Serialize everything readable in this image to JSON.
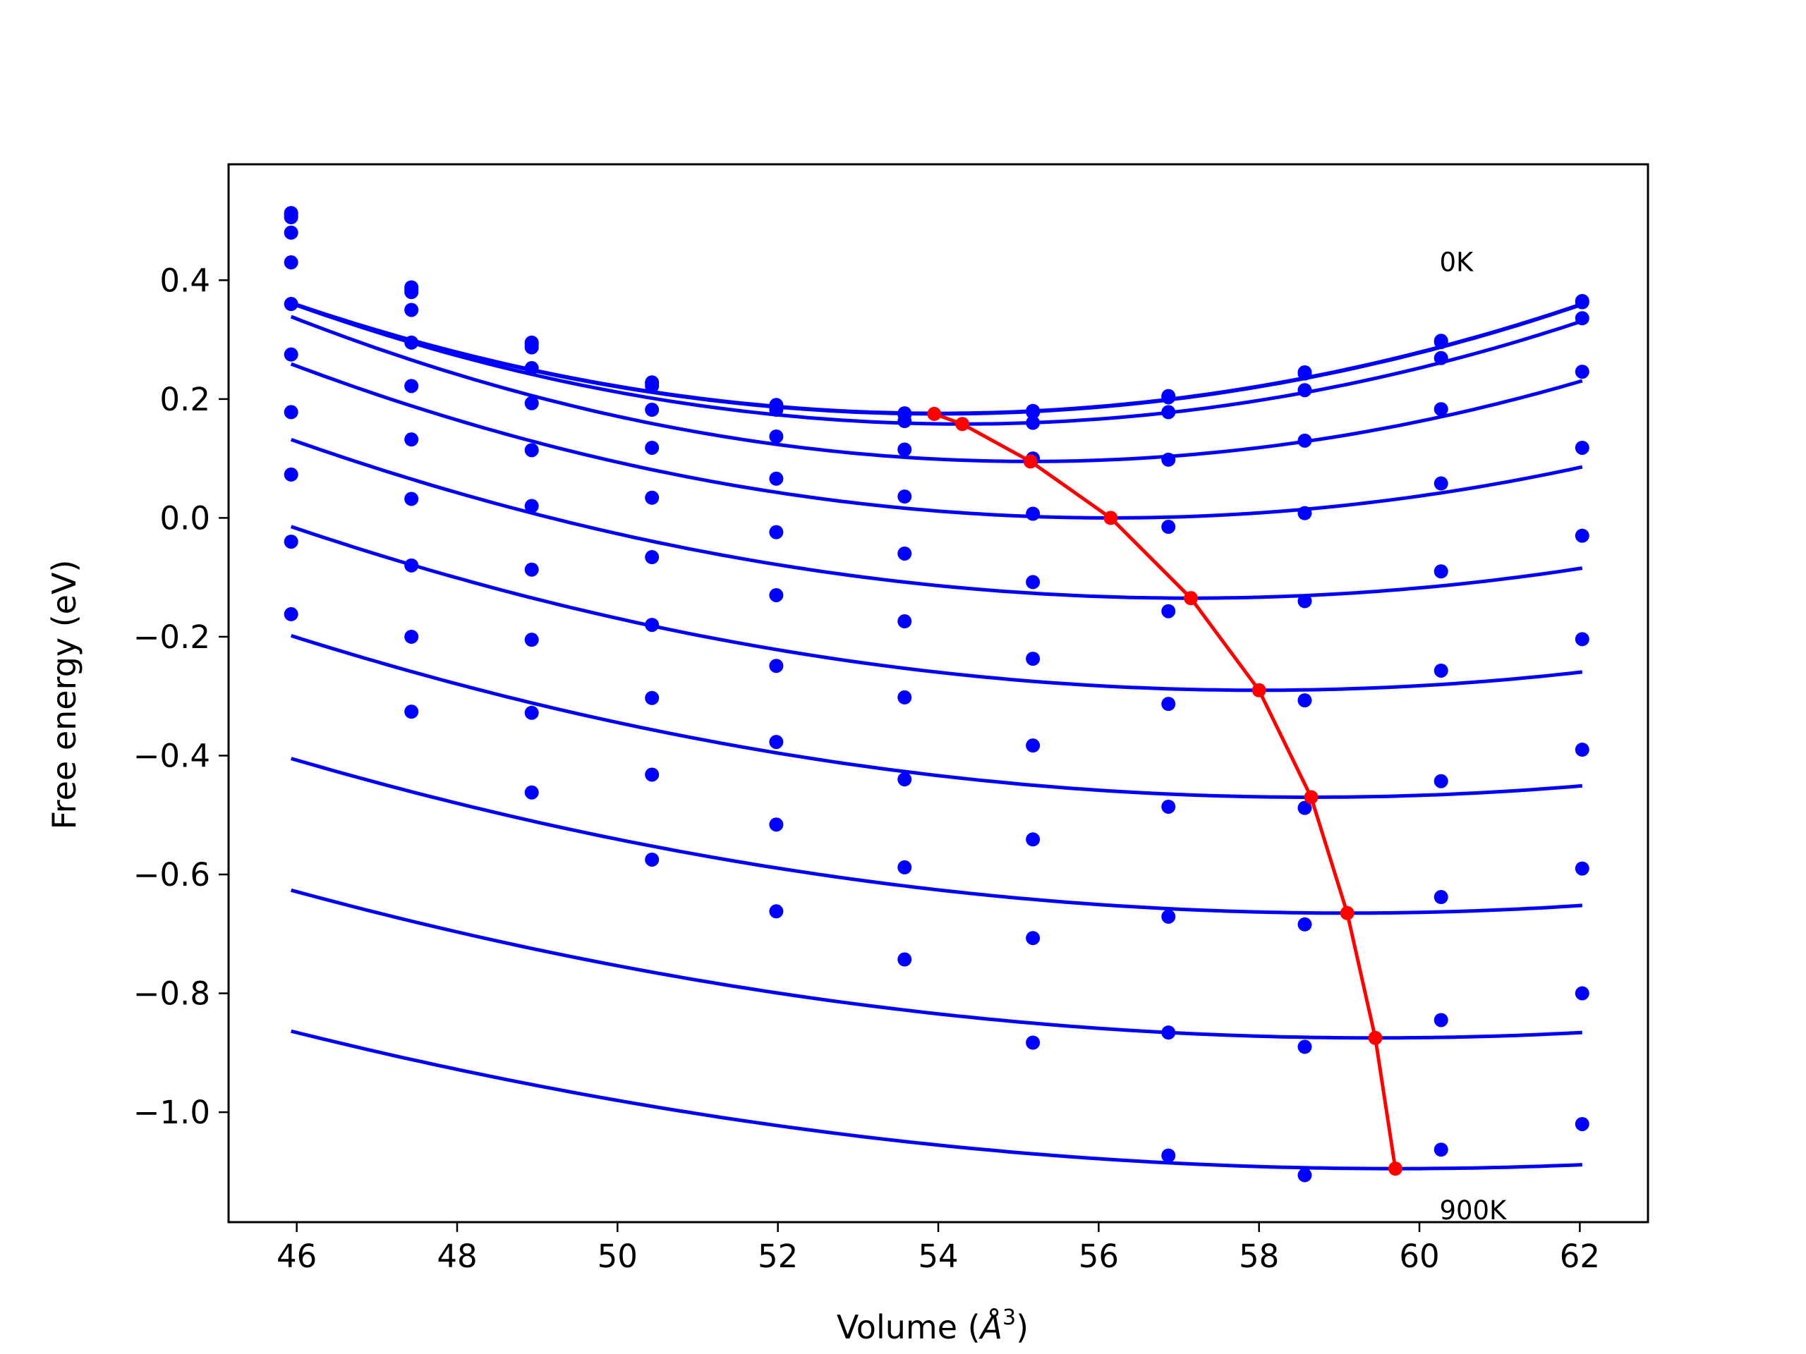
{
  "chart_data": {
    "type": "scatter",
    "xlabel": "Volume (",
    "xlabel_symbol": "Å",
    "xlabel_exponent": "3",
    "xlabel_close": ")",
    "ylabel": "Free energy (eV)",
    "xlim": [
      45.15,
      62.85
    ],
    "ylim": [
      -1.185,
      0.595
    ],
    "xticks": [
      46,
      48,
      50,
      52,
      54,
      56,
      58,
      60,
      62
    ],
    "xtick_labels": [
      "46",
      "48",
      "50",
      "52",
      "54",
      "56",
      "58",
      "60",
      "62"
    ],
    "yticks": [
      0.4,
      0.2,
      0.0,
      -0.2,
      -0.4,
      -0.6,
      -0.8,
      -1.0
    ],
    "ytick_labels": [
      "0.4",
      "0.2",
      "0.0",
      "−0.2",
      "−0.4",
      "−0.6",
      "−0.8",
      "−1.0"
    ],
    "grid": false,
    "annotations": [
      {
        "text": "0K",
        "x": 60.25,
        "y": 0.415
      },
      {
        "text": "900K",
        "x": 60.25,
        "y": -1.18
      }
    ],
    "colors": {
      "data": "#0000ff",
      "minimum_path": "#ff0000",
      "axes": "#000000"
    },
    "x": [
      45.93,
      47.43,
      48.93,
      50.43,
      51.98,
      53.58,
      55.18,
      56.87,
      58.57,
      60.27,
      62.03
    ],
    "series": [
      {
        "points": [
          0.51,
          0.385,
          0.292,
          0.226,
          0.188,
          0.174,
          0.178,
          0.203,
          0.243,
          0.296,
          0.363
        ],
        "fit": {
          "a": 0.002856,
          "x0": 54.0,
          "c": 0.175
        }
      },
      {
        "points": [
          0.48,
          0.35,
          0.252,
          0.182,
          0.137,
          0.115,
          0.1,
          0.098,
          0.13,
          0.183,
          0.246
        ],
        "fit": {
          "a": 0.002866,
          "x0": 55.15,
          "c": 0.095
        }
      },
      {
        "points": [
          0.43,
          0.295,
          0.193,
          0.118,
          0.066,
          0.036,
          0.007,
          -0.015,
          0.008,
          0.058,
          0.118
        ],
        "fit": {
          "a": 0.00248,
          "x0": 56.15,
          "c": 0.0
        }
      },
      {
        "points": [
          0.36,
          0.222,
          0.114,
          0.034,
          -0.024,
          -0.06,
          -0.108,
          -0.157,
          -0.14,
          -0.09,
          -0.03
        ],
        "fit": {
          "a": 0.00212,
          "x0": 57.15,
          "c": -0.135
        }
      },
      {
        "points": [
          0.275,
          0.132,
          0.02,
          -0.066,
          -0.13,
          -0.174,
          -0.237,
          -0.313,
          -0.307,
          -0.257,
          -0.204
        ],
        "fit": {
          "a": 0.00189,
          "x0": 58.0,
          "c": -0.29
        }
      },
      {
        "points": [
          0.178,
          0.032,
          -0.087,
          -0.18,
          -0.249,
          -0.302,
          -0.383,
          -0.486,
          -0.488,
          -0.443,
          -0.39
        ],
        "fit": {
          "a": 0.00168,
          "x0": 58.65,
          "c": -0.47
        }
      },
      {
        "points": [
          0.073,
          -0.08,
          -0.205,
          -0.303,
          -0.377,
          -0.44,
          -0.541,
          -0.671,
          -0.684,
          -0.638,
          -0.59
        ],
        "fit": {
          "a": 0.0015,
          "x0": 59.1,
          "c": -0.665
        }
      },
      {
        "points": [
          -0.04,
          -0.2,
          -0.328,
          -0.432,
          -0.516,
          -0.588,
          -0.707,
          -0.866,
          -0.89,
          -0.845,
          -0.8
        ],
        "fit": {
          "a": 0.00136,
          "x0": 59.45,
          "c": -0.875
        }
      },
      {
        "points": [
          -0.162,
          -0.326,
          -0.462,
          -0.575,
          -0.662,
          -0.743,
          -0.883,
          -1.073,
          -1.106,
          -1.063,
          -1.02
        ],
        "fit": {
          "a": 0.00122,
          "x0": 59.7,
          "c": -1.095
        }
      },
      {
        "points": [
          0.513,
          0.388,
          0.295,
          0.228,
          0.19,
          0.176,
          0.18,
          0.205,
          0.245,
          0.298,
          0.365
        ],
        "fit": {
          "a": 0.002856,
          "x0": 54.0,
          "c": 0.176
        }
      },
      {
        "points": [
          0.506,
          0.38,
          0.287,
          0.222,
          0.182,
          0.163,
          0.16,
          0.178,
          0.215,
          0.269,
          0.336
        ],
        "fit": {
          "a": 0.0029,
          "x0": 54.3,
          "c": 0.158
        }
      }
    ],
    "minimum_path": {
      "x": [
        53.95,
        54.3,
        55.15,
        56.15,
        57.15,
        58.0,
        58.65,
        59.1,
        59.45,
        59.7
      ],
      "y": [
        0.175,
        0.158,
        0.095,
        0.0,
        -0.135,
        -0.29,
        -0.47,
        -0.665,
        -0.875,
        -1.095
      ]
    }
  }
}
